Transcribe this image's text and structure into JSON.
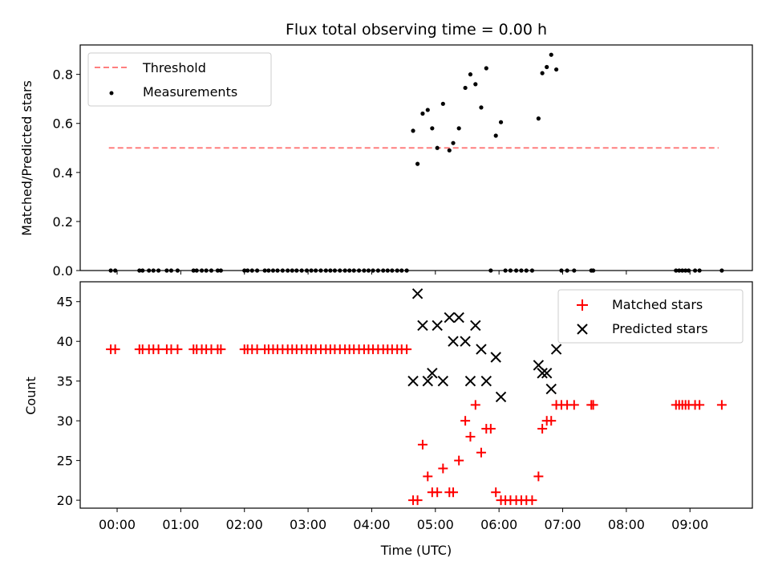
{
  "chart_data": [
    {
      "type": "scatter",
      "panel": "top",
      "title": "Flux total observing time = 0.00 h",
      "xlabel": "",
      "ylabel": "Matched/Predicted stars",
      "xlim": [
        -0.58,
        9.98
      ],
      "ylim": [
        0.0,
        0.92
      ],
      "yticks": [
        0.0,
        0.2,
        0.4,
        0.6,
        0.8
      ],
      "ytick_labels": [
        "0.0",
        "0.2",
        "0.4",
        "0.6",
        "0.8"
      ],
      "legend_position": "upper-left",
      "threshold": {
        "name": "Threshold",
        "color": "#ff7f7f",
        "y": 0.5,
        "x_range": [
          -0.13,
          9.45
        ]
      },
      "series": [
        {
          "name": "Measurements",
          "color": "#000000",
          "x": [
            -0.1,
            -0.03,
            0.35,
            0.4,
            0.5,
            0.57,
            0.65,
            0.78,
            0.85,
            0.95,
            1.2,
            1.25,
            1.33,
            1.4,
            1.48,
            1.58,
            1.63,
            2.0,
            2.05,
            2.12,
            2.2,
            2.32,
            2.38,
            2.45,
            2.52,
            2.6,
            2.68,
            2.75,
            2.82,
            2.9,
            2.98,
            3.05,
            3.12,
            3.2,
            3.28,
            3.35,
            3.42,
            3.5,
            3.58,
            3.65,
            3.72,
            3.8,
            3.88,
            3.95,
            4.02,
            4.1,
            4.18,
            4.25,
            4.32,
            4.4,
            4.47,
            4.55,
            4.65,
            4.72,
            4.8,
            4.88,
            4.95,
            5.03,
            5.12,
            5.22,
            5.28,
            5.37,
            5.47,
            5.55,
            5.63,
            5.72,
            5.8,
            5.87,
            5.95,
            6.03,
            6.1,
            6.18,
            6.27,
            6.35,
            6.43,
            6.52,
            6.62,
            6.68,
            6.75,
            6.82,
            6.9,
            6.98,
            7.07,
            7.18,
            7.45,
            7.48,
            8.78,
            8.83,
            8.88,
            8.93,
            8.98,
            9.08,
            9.15,
            9.5
          ],
          "y": [
            0,
            0,
            0,
            0,
            0,
            0,
            0,
            0,
            0,
            0,
            0,
            0,
            0,
            0,
            0,
            0,
            0,
            0,
            0,
            0,
            0,
            0,
            0,
            0,
            0,
            0,
            0,
            0,
            0,
            0,
            0,
            0,
            0,
            0,
            0,
            0,
            0,
            0,
            0,
            0,
            0,
            0,
            0,
            0,
            0,
            0,
            0,
            0,
            0,
            0,
            0,
            0,
            0.57,
            0.435,
            0.64,
            0.655,
            0.58,
            0.5,
            0.68,
            0.49,
            0.52,
            0.58,
            0.745,
            0.8,
            0.76,
            0.665,
            0.825,
            0,
            0.55,
            0.605,
            0,
            0,
            0,
            0,
            0,
            0,
            0.62,
            0.805,
            0.83,
            0.88,
            0.82,
            0,
            0,
            0,
            0,
            0,
            0,
            0,
            0,
            0,
            0,
            0,
            0,
            0
          ]
        }
      ]
    },
    {
      "type": "scatter",
      "panel": "bottom",
      "title": "",
      "xlabel": "Time (UTC)",
      "ylabel": "Count",
      "xlim": [
        -0.58,
        9.98
      ],
      "ylim": [
        19.0,
        47.5
      ],
      "yticks": [
        20,
        25,
        30,
        35,
        40,
        45
      ],
      "ytick_labels": [
        "20",
        "25",
        "30",
        "35",
        "40",
        "45"
      ],
      "xticks": [
        0,
        1,
        2,
        3,
        4,
        5,
        6,
        7,
        8,
        9
      ],
      "xtick_labels": [
        "00:00",
        "01:00",
        "02:00",
        "03:00",
        "04:00",
        "05:00",
        "06:00",
        "07:00",
        "08:00",
        "09:00"
      ],
      "legend_position": "upper-right",
      "series": [
        {
          "name": "Matched stars",
          "marker": "plus",
          "color": "#ff0000",
          "x": [
            -0.1,
            -0.03,
            0.35,
            0.4,
            0.5,
            0.57,
            0.65,
            0.78,
            0.85,
            0.95,
            1.2,
            1.25,
            1.33,
            1.4,
            1.48,
            1.58,
            1.63,
            2.0,
            2.05,
            2.12,
            2.2,
            2.32,
            2.38,
            2.45,
            2.52,
            2.6,
            2.68,
            2.75,
            2.82,
            2.9,
            2.98,
            3.05,
            3.12,
            3.2,
            3.28,
            3.35,
            3.42,
            3.5,
            3.58,
            3.65,
            3.72,
            3.8,
            3.88,
            3.95,
            4.02,
            4.1,
            4.18,
            4.25,
            4.32,
            4.4,
            4.47,
            4.55,
            4.65,
            4.72,
            4.8,
            4.88,
            4.95,
            5.03,
            5.12,
            5.22,
            5.28,
            5.37,
            5.47,
            5.55,
            5.63,
            5.72,
            5.8,
            5.87,
            5.95,
            6.03,
            6.1,
            6.18,
            6.27,
            6.35,
            6.43,
            6.52,
            6.62,
            6.68,
            6.75,
            6.82,
            6.9,
            6.98,
            7.07,
            7.18,
            7.45,
            7.48,
            8.78,
            8.83,
            8.88,
            8.93,
            8.98,
            9.08,
            9.15,
            9.5
          ],
          "y": [
            39,
            39,
            39,
            39,
            39,
            39,
            39,
            39,
            39,
            39,
            39,
            39,
            39,
            39,
            39,
            39,
            39,
            39,
            39,
            39,
            39,
            39,
            39,
            39,
            39,
            39,
            39,
            39,
            39,
            39,
            39,
            39,
            39,
            39,
            39,
            39,
            39,
            39,
            39,
            39,
            39,
            39,
            39,
            39,
            39,
            39,
            39,
            39,
            39,
            39,
            39,
            39,
            20,
            20,
            27,
            23,
            21,
            21,
            24,
            21,
            21,
            25,
            30,
            28,
            32,
            26,
            29,
            29,
            21,
            20,
            20,
            20,
            20,
            20,
            20,
            20,
            23,
            29,
            30,
            30,
            32,
            32,
            32,
            32,
            32,
            32,
            32,
            32,
            32,
            32,
            32,
            32,
            32,
            32
          ]
        },
        {
          "name": "Predicted stars",
          "marker": "x",
          "color": "#000000",
          "x": [
            4.65,
            4.72,
            4.8,
            4.88,
            4.95,
            5.03,
            5.12,
            5.22,
            5.28,
            5.37,
            5.47,
            5.55,
            5.63,
            5.72,
            5.8,
            5.95,
            6.03,
            6.62,
            6.68,
            6.75,
            6.82,
            6.9
          ],
          "y": [
            35,
            46,
            42,
            35,
            36,
            42,
            35,
            43,
            40,
            43,
            40,
            35,
            42,
            39,
            35,
            38,
            33,
            37,
            36,
            36,
            34,
            39
          ]
        }
      ]
    }
  ]
}
